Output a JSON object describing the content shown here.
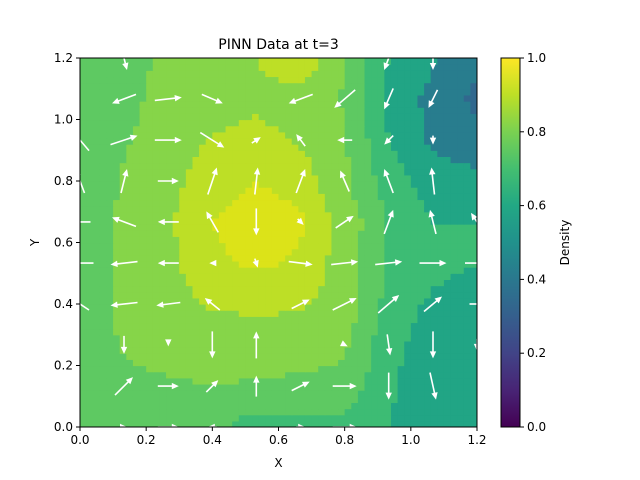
{
  "chart_data": {
    "type": "heatmap",
    "title": "PINN Data at t=3",
    "xlabel": "X",
    "ylabel": "Y",
    "xlim": [
      0.0,
      1.2
    ],
    "ylim": [
      0.0,
      1.2
    ],
    "x_ticks": [
      "0.0",
      "0.2",
      "0.4",
      "0.6",
      "0.8",
      "1.0",
      "1.2"
    ],
    "y_ticks": [
      "0.0",
      "0.2",
      "0.4",
      "0.6",
      "0.8",
      "1.0",
      "1.2"
    ],
    "x_tick_values": [
      0.0,
      0.2,
      0.4,
      0.6,
      0.8,
      1.0,
      1.2
    ],
    "y_tick_values": [
      0.0,
      0.2,
      0.4,
      0.6,
      0.8,
      1.0,
      1.2
    ],
    "colorbar": {
      "label": "Density",
      "range": [
        0.0,
        1.0
      ],
      "ticks": [
        "0.0",
        "0.2",
        "0.4",
        "0.6",
        "0.8",
        "1.0"
      ],
      "tick_values": [
        0.0,
        0.2,
        0.4,
        0.6,
        0.8,
        1.0
      ],
      "colormap": "viridis"
    },
    "grid_x": [
      0.0,
      0.133,
      0.267,
      0.4,
      0.533,
      0.667,
      0.8,
      0.933,
      1.067,
      1.2
    ],
    "grid_y": [
      0.0,
      0.133,
      0.267,
      0.4,
      0.533,
      0.667,
      0.8,
      0.933,
      1.067,
      1.2
    ],
    "density": [
      [
        0.65,
        0.66,
        0.67,
        0.67,
        0.6,
        0.61,
        0.62,
        0.55,
        0.52,
        0.54
      ],
      [
        0.66,
        0.73,
        0.74,
        0.75,
        0.74,
        0.73,
        0.72,
        0.56,
        0.5,
        0.48
      ],
      [
        0.68,
        0.76,
        0.78,
        0.79,
        0.8,
        0.79,
        0.77,
        0.58,
        0.5,
        0.47
      ],
      [
        0.68,
        0.78,
        0.82,
        0.86,
        0.87,
        0.86,
        0.82,
        0.61,
        0.53,
        0.5
      ],
      [
        0.66,
        0.78,
        0.83,
        0.91,
        0.93,
        0.91,
        0.81,
        0.63,
        0.58,
        0.55
      ],
      [
        0.66,
        0.78,
        0.84,
        0.92,
        0.95,
        0.93,
        0.82,
        0.64,
        0.55,
        0.55
      ],
      [
        0.66,
        0.76,
        0.82,
        0.9,
        0.92,
        0.9,
        0.77,
        0.6,
        0.5,
        0.47
      ],
      [
        0.65,
        0.74,
        0.8,
        0.86,
        0.88,
        0.84,
        0.76,
        0.55,
        0.43,
        0.4
      ],
      [
        0.66,
        0.72,
        0.79,
        0.8,
        0.83,
        0.8,
        0.74,
        0.52,
        0.42,
        0.32
      ],
      [
        0.66,
        0.7,
        0.78,
        0.8,
        0.85,
        0.93,
        0.75,
        0.55,
        0.46,
        0.38
      ]
    ],
    "quiver": {
      "x": [
        0.0,
        0.133,
        0.267,
        0.4,
        0.533,
        0.667,
        0.8,
        0.933,
        1.067,
        1.2
      ],
      "y": [
        0.0,
        0.133,
        0.267,
        0.4,
        0.533,
        0.667,
        0.8,
        0.933,
        1.067,
        1.2
      ],
      "u": [
        [
          0.0,
          0.2,
          0.7,
          -0.3,
          0.0,
          0.3,
          0.8,
          0.0,
          0.0,
          0.0
        ],
        [
          0.0,
          0.6,
          0.7,
          0.4,
          0.0,
          0.6,
          0.8,
          0.0,
          0.2,
          0.0
        ],
        [
          0.0,
          0.0,
          0.0,
          0.0,
          0.0,
          0.0,
          0.2,
          0.1,
          0.0,
          0.0
        ],
        [
          -0.6,
          -0.9,
          -0.8,
          -0.5,
          0.0,
          0.6,
          0.8,
          0.7,
          0.6,
          0.5
        ],
        [
          -0.9,
          -0.9,
          -0.7,
          -0.2,
          0.1,
          0.8,
          0.9,
          0.9,
          0.9,
          0.8
        ],
        [
          -0.7,
          -0.8,
          -0.7,
          -0.4,
          0.0,
          0.2,
          0.6,
          0.3,
          -0.2,
          -0.4
        ],
        [
          -0.3,
          0.2,
          0.7,
          0.3,
          0.1,
          0.3,
          -0.3,
          -0.3,
          -0.1,
          0.0
        ],
        [
          -0.6,
          0.9,
          0.9,
          0.8,
          0.3,
          -0.3,
          -0.5,
          -0.3,
          0.0,
          0.0
        ],
        [
          0.0,
          -0.8,
          0.9,
          0.7,
          0.0,
          -0.8,
          -0.7,
          -0.3,
          -0.3,
          0.0
        ],
        [
          0.0,
          0.2,
          0.0,
          0.0,
          0.0,
          0.0,
          0.0,
          -0.3,
          0.0,
          0.0
        ]
      ],
      "v": [
        [
          0.0,
          0.0,
          0.0,
          0.0,
          0.0,
          0.0,
          0.0,
          0.0,
          0.0,
          0.0
        ],
        [
          0.0,
          0.6,
          0.0,
          0.4,
          0.7,
          0.3,
          0.0,
          -0.9,
          -0.9,
          0.0
        ],
        [
          0.0,
          -0.6,
          -0.1,
          -0.9,
          0.9,
          0.0,
          -0.1,
          -0.7,
          -0.9,
          -0.4
        ],
        [
          0.4,
          -0.1,
          -0.1,
          0.4,
          0.0,
          0.3,
          0.4,
          0.6,
          0.5,
          0.0
        ],
        [
          0.0,
          -0.1,
          0.0,
          0.0,
          -0.3,
          -0.1,
          0.1,
          0.1,
          0.0,
          0.0
        ],
        [
          0.0,
          0.3,
          0.0,
          0.7,
          -0.9,
          -0.2,
          0.4,
          0.8,
          0.8,
          0.6
        ],
        [
          0.8,
          0.8,
          0.0,
          0.9,
          0.9,
          0.8,
          0.7,
          0.8,
          0.9,
          0.0
        ],
        [
          0.7,
          0.3,
          0.0,
          -0.5,
          0.2,
          0.4,
          0.0,
          -0.3,
          -0.3,
          0.0
        ],
        [
          0.0,
          -0.3,
          0.1,
          -0.3,
          0.0,
          -0.3,
          -0.6,
          -0.7,
          -0.6,
          0.0
        ],
        [
          0.0,
          -0.8,
          0.0,
          0.0,
          0.0,
          0.0,
          0.0,
          -0.8,
          -0.8,
          0.0
        ]
      ],
      "color": "#ffffff"
    }
  }
}
